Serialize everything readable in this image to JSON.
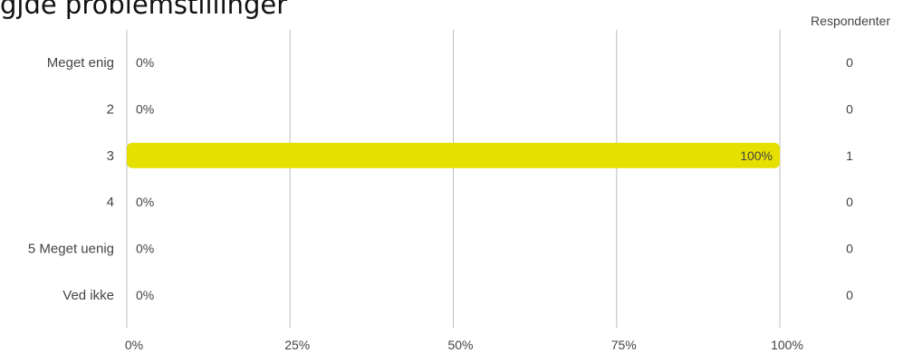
{
  "title": "gjde problemstillinger",
  "respondents_header": "Respondenter",
  "chart_data": {
    "type": "bar",
    "orientation": "horizontal",
    "categories": [
      "Meget enig",
      "2",
      "3",
      "4",
      "5 Meget uenig",
      "Ved ikke"
    ],
    "values": [
      0,
      0,
      100,
      0,
      0,
      0
    ],
    "value_labels": [
      "0%",
      "0%",
      "100%",
      "0%",
      "0%",
      "0%"
    ],
    "respondents": [
      0,
      0,
      1,
      0,
      0,
      0
    ],
    "xlim": [
      0,
      100
    ],
    "xticks": [
      "0%",
      "25%",
      "50%",
      "75%",
      "100%"
    ],
    "grid": true,
    "bar_color": "#e6e000",
    "grid_color": "#bdbdbd"
  }
}
